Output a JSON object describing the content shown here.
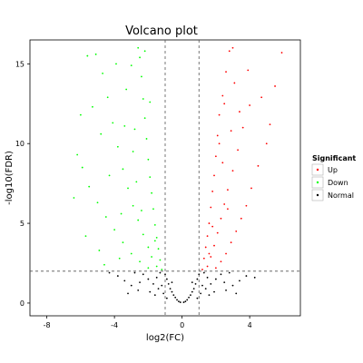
{
  "chart_data": {
    "type": "scatter",
    "title": "Volcano plot",
    "xlabel": "log2(FC)",
    "ylabel": "-log10(FDR)",
    "xlim": [
      -9,
      7
    ],
    "ylim": [
      -0.8,
      16.5
    ],
    "x_ticks": [
      "-8",
      "-4",
      "0",
      "4"
    ],
    "x_tick_values": [
      -8,
      -4,
      0,
      4
    ],
    "y_ticks": [
      "0",
      "5",
      "10",
      "15"
    ],
    "y_tick_values": [
      0,
      5,
      10,
      15
    ],
    "grid": false,
    "thresholds": {
      "log2fc": [
        -1,
        1
      ],
      "neg_log10_fdr": 2
    },
    "legend": {
      "title": "Significant",
      "position": "right",
      "entries": [
        {
          "label": "Up",
          "color": "#ff0000"
        },
        {
          "label": "Down",
          "color": "#00ff00"
        },
        {
          "label": "Normal",
          "color": "#000000"
        }
      ]
    },
    "series": [
      {
        "name": "Up",
        "color": "#ff0000",
        "points": [
          [
            1.2,
            2.1
          ],
          [
            1.3,
            2.8
          ],
          [
            1.4,
            3.5
          ],
          [
            1.5,
            4.2
          ],
          [
            1.6,
            5.0
          ],
          [
            1.7,
            6.0
          ],
          [
            1.8,
            7.0
          ],
          [
            1.9,
            8.0
          ],
          [
            2.0,
            9.2
          ],
          [
            2.1,
            10.5
          ],
          [
            2.2,
            11.8
          ],
          [
            2.4,
            13.0
          ],
          [
            2.6,
            14.5
          ],
          [
            2.8,
            15.8
          ],
          [
            3.0,
            16.0
          ],
          [
            1.5,
            2.3
          ],
          [
            1.7,
            2.9
          ],
          [
            1.9,
            3.6
          ],
          [
            2.1,
            4.4
          ],
          [
            2.3,
            5.3
          ],
          [
            2.5,
            6.2
          ],
          [
            2.7,
            7.1
          ],
          [
            3.0,
            8.3
          ],
          [
            3.3,
            9.6
          ],
          [
            3.6,
            11.0
          ],
          [
            4.0,
            12.4
          ],
          [
            2.0,
            2.2
          ],
          [
            2.3,
            2.6
          ],
          [
            2.6,
            3.1
          ],
          [
            2.9,
            3.8
          ],
          [
            3.2,
            4.5
          ],
          [
            3.5,
            5.3
          ],
          [
            3.8,
            6.1
          ],
          [
            4.1,
            7.2
          ],
          [
            4.5,
            8.6
          ],
          [
            5.0,
            10.0
          ],
          [
            5.2,
            11.2
          ],
          [
            5.5,
            13.6
          ],
          [
            5.9,
            15.7
          ],
          [
            4.7,
            12.9
          ],
          [
            3.1,
            13.8
          ],
          [
            2.5,
            12.5
          ],
          [
            2.2,
            10.0
          ],
          [
            2.9,
            10.8
          ],
          [
            2.4,
            8.8
          ],
          [
            3.4,
            12.0
          ],
          [
            1.6,
            3.1
          ],
          [
            1.8,
            4.8
          ],
          [
            2.7,
            5.9
          ],
          [
            3.9,
            14.6
          ]
        ]
      },
      {
        "name": "Down",
        "color": "#00ff00",
        "points": [
          [
            -1.2,
            2.1
          ],
          [
            -1.3,
            2.7
          ],
          [
            -1.4,
            3.4
          ],
          [
            -1.5,
            4.1
          ],
          [
            -1.6,
            4.9
          ],
          [
            -1.7,
            5.9
          ],
          [
            -1.8,
            6.9
          ],
          [
            -1.9,
            7.9
          ],
          [
            -2.0,
            9.0
          ],
          [
            -2.1,
            10.3
          ],
          [
            -2.2,
            11.6
          ],
          [
            -2.3,
            12.8
          ],
          [
            -2.4,
            14.2
          ],
          [
            -2.5,
            15.4
          ],
          [
            -2.6,
            16.0
          ],
          [
            -1.5,
            2.3
          ],
          [
            -1.8,
            2.9
          ],
          [
            -2.0,
            3.5
          ],
          [
            -2.3,
            4.3
          ],
          [
            -2.6,
            5.2
          ],
          [
            -2.9,
            6.1
          ],
          [
            -3.2,
            7.2
          ],
          [
            -3.5,
            8.4
          ],
          [
            -3.8,
            9.8
          ],
          [
            -4.1,
            11.3
          ],
          [
            -4.4,
            12.9
          ],
          [
            -4.7,
            14.4
          ],
          [
            -5.1,
            15.6
          ],
          [
            -5.6,
            15.5
          ],
          [
            -2.0,
            2.2
          ],
          [
            -2.5,
            2.6
          ],
          [
            -3.0,
            3.1
          ],
          [
            -3.5,
            3.8
          ],
          [
            -4.0,
            4.6
          ],
          [
            -4.5,
            5.4
          ],
          [
            -5.0,
            6.3
          ],
          [
            -5.5,
            7.3
          ],
          [
            -5.9,
            8.5
          ],
          [
            -6.2,
            9.3
          ],
          [
            -6.0,
            11.8
          ],
          [
            -5.3,
            12.3
          ],
          [
            -4.8,
            10.6
          ],
          [
            -3.3,
            13.4
          ],
          [
            -3.0,
            14.9
          ],
          [
            -2.8,
            10.9
          ],
          [
            -3.6,
            5.6
          ],
          [
            -4.3,
            8.0
          ],
          [
            -2.7,
            7.6
          ],
          [
            -4.9,
            3.3
          ],
          [
            -5.7,
            4.2
          ],
          [
            -2.2,
            15.8
          ],
          [
            -3.9,
            15.0
          ],
          [
            -1.6,
            3.9
          ],
          [
            -2.4,
            5.8
          ],
          [
            -6.4,
            6.6
          ],
          [
            -4.6,
            2.4
          ],
          [
            -3.7,
            2.8
          ],
          [
            -2.9,
            9.5
          ],
          [
            -3.4,
            11.1
          ],
          [
            -1.9,
            12.6
          ]
        ]
      },
      {
        "name": "Normal",
        "color": "#000000",
        "points": [
          [
            -0.1,
            0.05
          ],
          [
            0.1,
            0.05
          ],
          [
            -0.2,
            0.1
          ],
          [
            0.2,
            0.1
          ],
          [
            -0.3,
            0.2
          ],
          [
            0.3,
            0.2
          ],
          [
            -0.4,
            0.35
          ],
          [
            0.4,
            0.35
          ],
          [
            -0.5,
            0.5
          ],
          [
            0.5,
            0.5
          ],
          [
            -0.6,
            0.7
          ],
          [
            0.6,
            0.7
          ],
          [
            -0.7,
            0.9
          ],
          [
            0.7,
            0.9
          ],
          [
            -0.8,
            1.2
          ],
          [
            0.8,
            1.2
          ],
          [
            -0.9,
            1.5
          ],
          [
            0.9,
            1.5
          ],
          [
            -1.0,
            1.8
          ],
          [
            1.0,
            1.8
          ],
          [
            -1.1,
            0.6
          ],
          [
            1.1,
            0.6
          ],
          [
            -1.4,
            0.9
          ],
          [
            1.4,
            0.9
          ],
          [
            -1.7,
            1.2
          ],
          [
            1.7,
            1.2
          ],
          [
            -2.0,
            1.5
          ],
          [
            2.0,
            1.5
          ],
          [
            -2.3,
            1.8
          ],
          [
            2.3,
            1.8
          ],
          [
            -2.6,
            0.8
          ],
          [
            2.6,
            0.8
          ],
          [
            -3.0,
            1.1
          ],
          [
            3.0,
            1.1
          ],
          [
            -3.4,
            1.4
          ],
          [
            3.4,
            1.4
          ],
          [
            -3.8,
            1.7
          ],
          [
            3.8,
            1.7
          ],
          [
            -4.3,
            1.9
          ],
          [
            4.3,
            1.6
          ],
          [
            -1.3,
            1.9
          ],
          [
            1.3,
            1.9
          ],
          [
            -1.6,
            0.5
          ],
          [
            1.6,
            0.5
          ],
          [
            -1.9,
            0.7
          ],
          [
            1.9,
            0.7
          ],
          [
            -2.5,
            1.3
          ],
          [
            2.5,
            1.3
          ],
          [
            -3.2,
            0.6
          ],
          [
            3.2,
            0.6
          ],
          [
            -0.9,
            0.3
          ],
          [
            0.9,
            0.3
          ],
          [
            -1.5,
            1.6
          ],
          [
            1.5,
            1.6
          ],
          [
            -2.8,
            1.9
          ],
          [
            2.8,
            1.9
          ],
          [
            -0.6,
            1.3
          ],
          [
            0.6,
            1.3
          ],
          [
            -1.2,
            1.1
          ],
          [
            1.2,
            1.1
          ]
        ]
      }
    ]
  }
}
